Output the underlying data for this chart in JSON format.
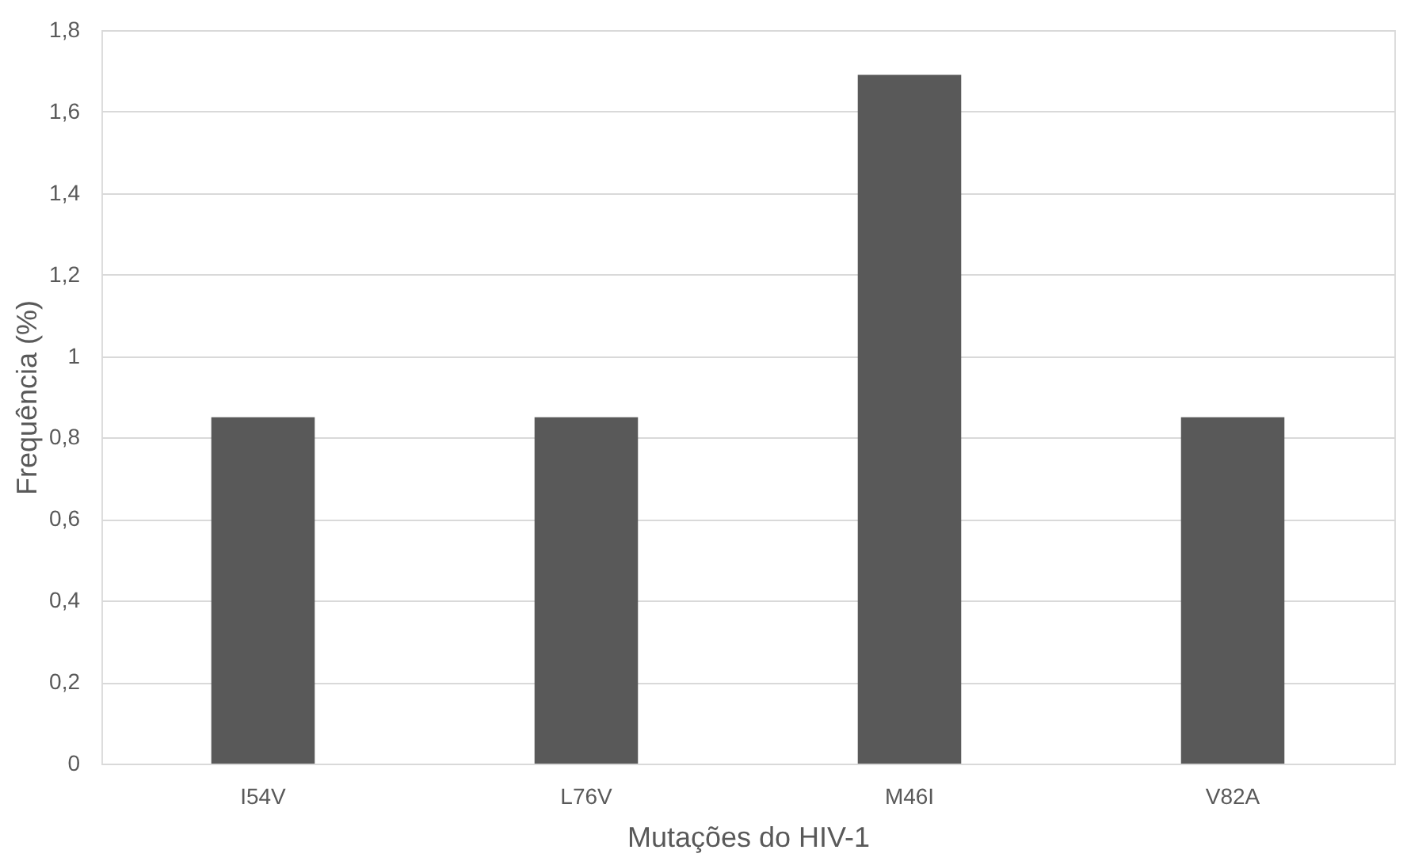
{
  "chart_data": {
    "type": "bar",
    "xlabel": "Mutações do HIV-1",
    "ylabel": "Frequência (%)",
    "categories": [
      "I54V",
      "L76V",
      "M46I",
      "V82A"
    ],
    "values": [
      0.85,
      0.85,
      1.69,
      0.85
    ],
    "color": "#595959",
    "ylim": [
      0,
      1.8
    ],
    "yticks": [
      0,
      {
        "value": 0.2,
        "label": "0,2"
      },
      {
        "value": 0.4,
        "label": "0,4"
      },
      {
        "value": 0.6,
        "label": "0,6"
      },
      {
        "value": 0.8,
        "label": "0,8"
      },
      1,
      {
        "value": 1.2,
        "label": "1,2"
      },
      {
        "value": 1.4,
        "label": "1,4"
      },
      {
        "value": 1.6,
        "label": "1,6"
      },
      {
        "value": 1.8,
        "label": "1,8"
      }
    ],
    "grid": "y"
  }
}
